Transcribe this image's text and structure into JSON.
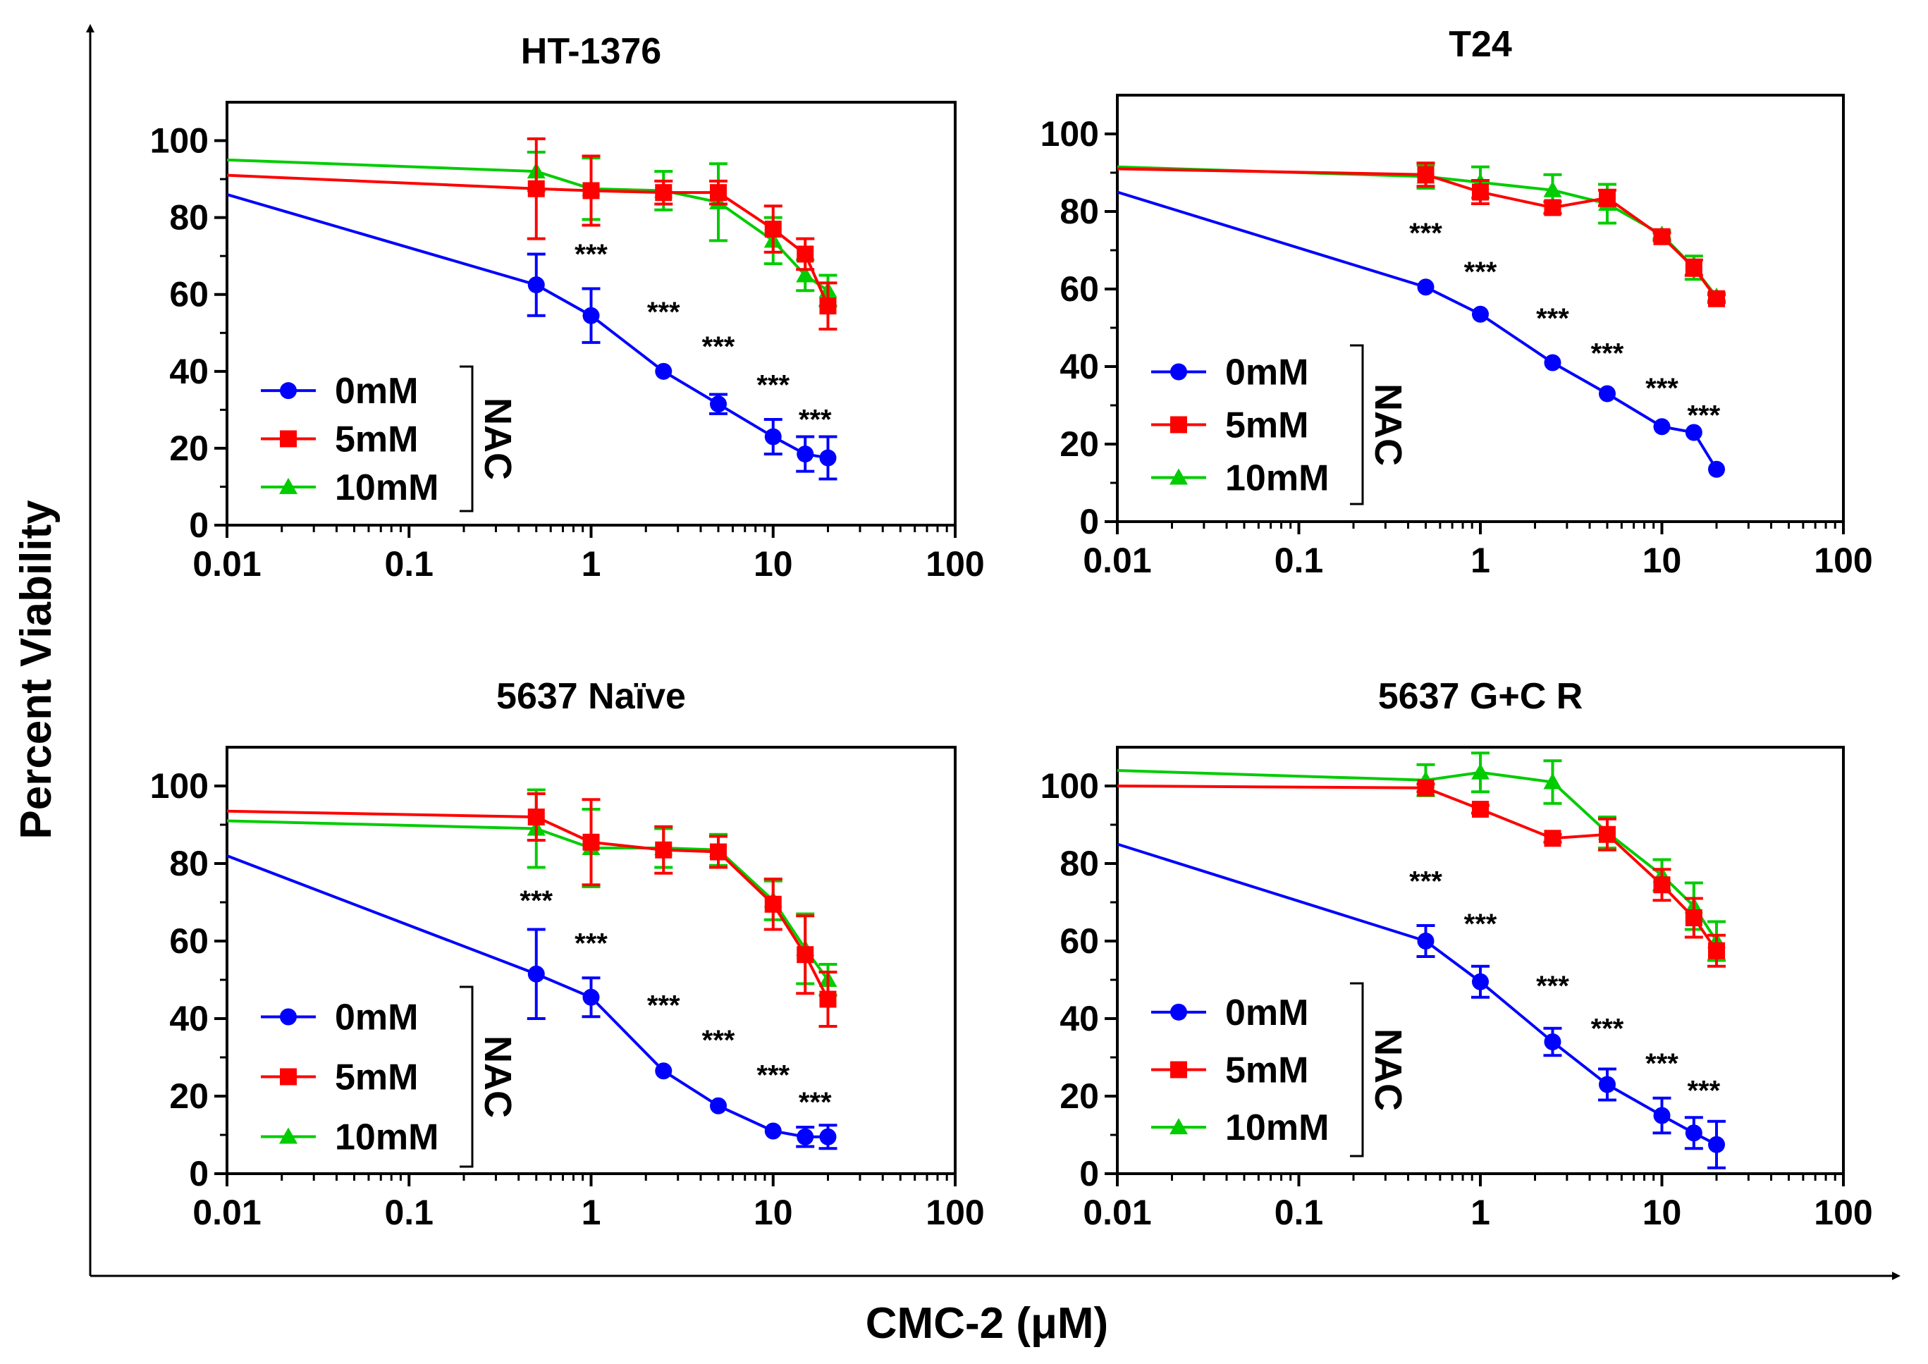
{
  "figure": {
    "ylabel": "Percent Viability",
    "xlabel": "CMC-2 (μM)"
  },
  "chart_data": [
    {
      "type": "line",
      "title": "HT-1376",
      "xscale": "log",
      "xlim": [
        0.01,
        100
      ],
      "ylim": [
        0,
        110
      ],
      "xticks": [
        0.01,
        0.1,
        1,
        10,
        100
      ],
      "xtick_labels": [
        "0.01",
        "0.1",
        "1",
        "10",
        "100"
      ],
      "yticks": [
        0,
        20,
        40,
        60,
        80,
        100
      ],
      "ytick_labels": [
        "0",
        "20",
        "40",
        "60",
        "80",
        "100"
      ],
      "legend_title": "NAC",
      "legend_position": "bottom-left",
      "series": [
        {
          "name": "0mM",
          "color": "#0000ff",
          "marker": "circle",
          "intercept": 86,
          "x": [
            0.5,
            1,
            2.5,
            5,
            10,
            15,
            20
          ],
          "y": [
            62.5,
            54.5,
            40,
            31.5,
            23,
            18.5,
            17.5
          ],
          "err": [
            8,
            7,
            0,
            2.5,
            4.5,
            4.5,
            5.5
          ]
        },
        {
          "name": "5mM",
          "color": "#ff0000",
          "marker": "square",
          "intercept": 91,
          "x": [
            0.5,
            1,
            2.5,
            5,
            10,
            15,
            20
          ],
          "y": [
            87.5,
            87,
            86.5,
            86.5,
            77,
            70.5,
            57
          ],
          "err": [
            13,
            9,
            3,
            3,
            6,
            4,
            6
          ]
        },
        {
          "name": "10mM",
          "color": "#00cc00",
          "marker": "triangle",
          "intercept": 95,
          "x": [
            0.5,
            1,
            2.5,
            5,
            10,
            15,
            20
          ],
          "y": [
            92,
            87.5,
            87,
            84,
            74,
            65,
            61
          ],
          "err": [
            5,
            8,
            5,
            10,
            6,
            4,
            4
          ]
        }
      ],
      "annotations": [
        {
          "text": "***",
          "x": 1,
          "y": 68
        },
        {
          "text": "***",
          "x": 2.5,
          "y": 53
        },
        {
          "text": "***",
          "x": 5,
          "y": 44
        },
        {
          "text": "***",
          "x": 10,
          "y": 34
        },
        {
          "text": "***",
          "x": 17,
          "y": 25
        }
      ]
    },
    {
      "type": "line",
      "title": "T24",
      "xscale": "log",
      "xlim": [
        0.01,
        100
      ],
      "ylim": [
        0,
        110
      ],
      "xticks": [
        0.01,
        0.1,
        1,
        10,
        100
      ],
      "xtick_labels": [
        "0.01",
        "0.1",
        "1",
        "10",
        "100"
      ],
      "yticks": [
        0,
        20,
        40,
        60,
        80,
        100
      ],
      "ytick_labels": [
        "0",
        "20",
        "40",
        "60",
        "80",
        "100"
      ],
      "legend_title": "NAC",
      "legend_position": "bottom-left",
      "series": [
        {
          "name": "0mM",
          "color": "#0000ff",
          "marker": "circle",
          "intercept": 85,
          "x": [
            0.5,
            1,
            2.5,
            5,
            10,
            15,
            20
          ],
          "y": [
            60.5,
            53.5,
            41,
            33,
            24.5,
            23,
            13.5
          ],
          "err": [
            0,
            0,
            0,
            0,
            0,
            0,
            0
          ]
        },
        {
          "name": "5mM",
          "color": "#ff0000",
          "marker": "square",
          "intercept": 91,
          "x": [
            0.5,
            1,
            2.5,
            5,
            10,
            15,
            20
          ],
          "y": [
            89.5,
            85,
            81,
            83.5,
            73.5,
            65.5,
            57.5
          ],
          "err": [
            3,
            3,
            1.5,
            2,
            1,
            2,
            1
          ]
        },
        {
          "name": "10mM",
          "color": "#00cc00",
          "marker": "triangle",
          "intercept": 91.5,
          "x": [
            0.5,
            1,
            2.5,
            5,
            10,
            15,
            20
          ],
          "y": [
            89,
            87.5,
            85.5,
            82,
            74,
            65.5,
            58
          ],
          "err": [
            3,
            4,
            4,
            5,
            1,
            3,
            1
          ]
        }
      ],
      "annotations": [
        {
          "text": "***",
          "x": 0.5,
          "y": 72
        },
        {
          "text": "***",
          "x": 1,
          "y": 62
        },
        {
          "text": "***",
          "x": 2.5,
          "y": 50
        },
        {
          "text": "***",
          "x": 5,
          "y": 41
        },
        {
          "text": "***",
          "x": 10,
          "y": 32
        },
        {
          "text": "***",
          "x": 17,
          "y": 25
        }
      ]
    },
    {
      "type": "line",
      "title": "5637 Naïve",
      "xscale": "log",
      "xlim": [
        0.01,
        100
      ],
      "ylim": [
        0,
        110
      ],
      "xticks": [
        0.01,
        0.1,
        1,
        10,
        100
      ],
      "xtick_labels": [
        "0.01",
        "0.1",
        "1",
        "10",
        "100"
      ],
      "yticks": [
        0,
        20,
        40,
        60,
        80,
        100
      ],
      "ytick_labels": [
        "0",
        "20",
        "40",
        "60",
        "80",
        "100"
      ],
      "legend_title": "NAC",
      "legend_position": "bottom-left",
      "series": [
        {
          "name": "0mM",
          "color": "#0000ff",
          "marker": "circle",
          "intercept": 82,
          "x": [
            0.5,
            1,
            2.5,
            5,
            10,
            15,
            20
          ],
          "y": [
            51.5,
            45.5,
            26.5,
            17.5,
            11,
            9.5,
            9.5
          ],
          "err": [
            11.5,
            5,
            0,
            0,
            0,
            2.5,
            3
          ]
        },
        {
          "name": "5mM",
          "color": "#ff0000",
          "marker": "square",
          "intercept": 93.5,
          "x": [
            0.5,
            1,
            2.5,
            5,
            10,
            15,
            20
          ],
          "y": [
            92,
            85.5,
            83.5,
            83,
            69.5,
            56.5,
            45
          ],
          "err": [
            6,
            11,
            6,
            4,
            6.5,
            10,
            7
          ]
        },
        {
          "name": "10mM",
          "color": "#00cc00",
          "marker": "triangle",
          "intercept": 91,
          "x": [
            0.5,
            1,
            2.5,
            5,
            10,
            15,
            20
          ],
          "y": [
            89,
            84,
            84,
            83.5,
            70.5,
            58,
            50
          ],
          "err": [
            10,
            10,
            5,
            4,
            5,
            9,
            4
          ]
        }
      ],
      "annotations": [
        {
          "text": "***",
          "x": 0.5,
          "y": 68
        },
        {
          "text": "***",
          "x": 1,
          "y": 57
        },
        {
          "text": "***",
          "x": 2.5,
          "y": 41
        },
        {
          "text": "***",
          "x": 5,
          "y": 32
        },
        {
          "text": "***",
          "x": 10,
          "y": 23
        },
        {
          "text": "***",
          "x": 17,
          "y": 16
        }
      ]
    },
    {
      "type": "line",
      "title": "5637 G+C R",
      "xscale": "log",
      "xlim": [
        0.01,
        100
      ],
      "ylim": [
        0,
        110
      ],
      "xticks": [
        0.01,
        0.1,
        1,
        10,
        100
      ],
      "xtick_labels": [
        "0.01",
        "0.1",
        "1",
        "10",
        "100"
      ],
      "yticks": [
        0,
        20,
        40,
        60,
        80,
        100
      ],
      "ytick_labels": [
        "0",
        "20",
        "40",
        "60",
        "80",
        "100"
      ],
      "legend_title": "NAC",
      "legend_position": "bottom-left",
      "series": [
        {
          "name": "0mM",
          "color": "#0000ff",
          "marker": "circle",
          "intercept": 85,
          "x": [
            0.5,
            1,
            2.5,
            5,
            10,
            15,
            20
          ],
          "y": [
            60,
            49.5,
            34,
            23,
            15,
            10.5,
            7.5
          ],
          "err": [
            4,
            4,
            3.5,
            4,
            4.5,
            4,
            6
          ]
        },
        {
          "name": "5mM",
          "color": "#ff0000",
          "marker": "square",
          "intercept": 100,
          "x": [
            0.5,
            1,
            2.5,
            5,
            10,
            15,
            20
          ],
          "y": [
            99.5,
            94,
            86.5,
            87.5,
            74.5,
            66,
            57.5
          ],
          "err": [
            1,
            1,
            1,
            4,
            4,
            5,
            4
          ]
        },
        {
          "name": "10mM",
          "color": "#00cc00",
          "marker": "triangle",
          "intercept": 104,
          "x": [
            0.5,
            1,
            2.5,
            5,
            10,
            15,
            20
          ],
          "y": [
            101.5,
            103.5,
            101,
            88,
            77,
            69,
            60
          ],
          "err": [
            4,
            5,
            5.5,
            4,
            4,
            6,
            5
          ]
        }
      ],
      "annotations": [
        {
          "text": "***",
          "x": 0.5,
          "y": 73
        },
        {
          "text": "***",
          "x": 1,
          "y": 62
        },
        {
          "text": "***",
          "x": 2.5,
          "y": 46
        },
        {
          "text": "***",
          "x": 5,
          "y": 35
        },
        {
          "text": "***",
          "x": 10,
          "y": 26
        },
        {
          "text": "***",
          "x": 17,
          "y": 19
        }
      ]
    }
  ]
}
